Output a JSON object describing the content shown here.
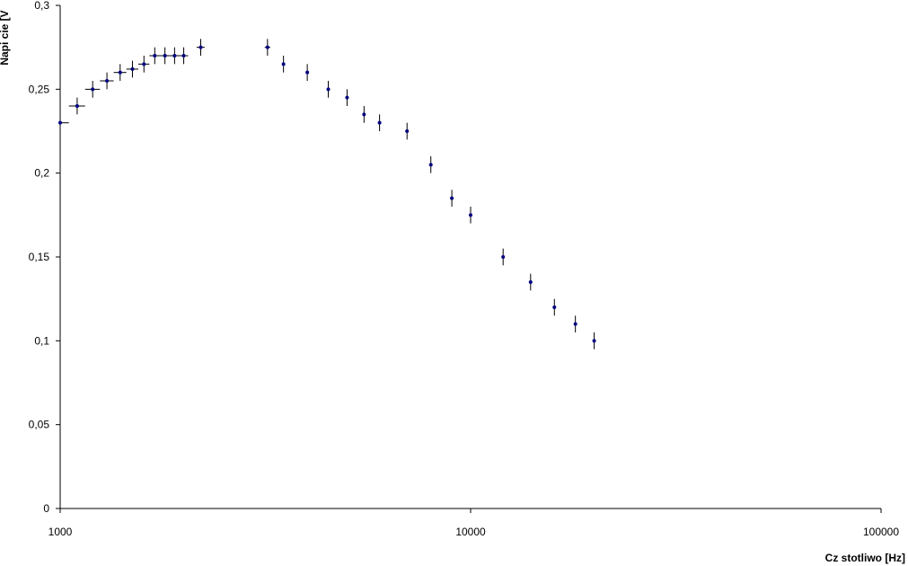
{
  "chart_data": {
    "type": "scatter",
    "title": "",
    "xlabel": "Cz  stotliwo    [Hz]",
    "ylabel": "Napi cie [V",
    "x_scale": "log",
    "xlim": [
      1000,
      100000
    ],
    "ylim": [
      0,
      0.3
    ],
    "x_ticks": [
      1000,
      10000,
      100000
    ],
    "x_tick_labels": [
      "1000",
      "10000",
      "100000"
    ],
    "y_ticks": [
      0,
      0.05,
      0.1,
      0.15,
      0.2,
      0.25,
      0.3
    ],
    "y_tick_labels": [
      "0",
      "0,05",
      "0,1",
      "0,15",
      "0,2",
      "0,25",
      "0,3"
    ],
    "grid": false,
    "legend": "none",
    "marker_color": "#000080",
    "error_bar_color": "#000000",
    "y_error": 0.005,
    "series": [
      {
        "points": [
          {
            "x": 1000,
            "y": 0.23,
            "xerr": 50
          },
          {
            "x": 1100,
            "y": 0.24,
            "xerr": 50
          },
          {
            "x": 1200,
            "y": 0.25,
            "xerr": 50
          },
          {
            "x": 1300,
            "y": 0.255,
            "xerr": 50
          },
          {
            "x": 1400,
            "y": 0.26,
            "xerr": 50
          },
          {
            "x": 1500,
            "y": 0.262,
            "xerr": 50
          },
          {
            "x": 1600,
            "y": 0.265,
            "xerr": 50
          },
          {
            "x": 1700,
            "y": 0.27,
            "xerr": 50
          },
          {
            "x": 1800,
            "y": 0.27,
            "xerr": 50
          },
          {
            "x": 1900,
            "y": 0.27,
            "xerr": 50
          },
          {
            "x": 2000,
            "y": 0.27,
            "xerr": 50
          },
          {
            "x": 2200,
            "y": 0.275,
            "xerr": 50
          },
          {
            "x": 3200,
            "y": 0.275,
            "xerr": 50
          },
          {
            "x": 3500,
            "y": 0.265,
            "xerr": 0
          },
          {
            "x": 4000,
            "y": 0.26,
            "xerr": 0
          },
          {
            "x": 4500,
            "y": 0.25,
            "xerr": 0
          },
          {
            "x": 5000,
            "y": 0.245,
            "xerr": 0
          },
          {
            "x": 5500,
            "y": 0.235,
            "xerr": 0
          },
          {
            "x": 6000,
            "y": 0.23,
            "xerr": 0
          },
          {
            "x": 7000,
            "y": 0.225,
            "xerr": 0
          },
          {
            "x": 8000,
            "y": 0.205,
            "xerr": 0
          },
          {
            "x": 9000,
            "y": 0.185,
            "xerr": 0
          },
          {
            "x": 10000,
            "y": 0.175,
            "xerr": 0
          },
          {
            "x": 12000,
            "y": 0.15,
            "xerr": 0
          },
          {
            "x": 14000,
            "y": 0.135,
            "xerr": 0
          },
          {
            "x": 16000,
            "y": 0.12,
            "xerr": 0
          },
          {
            "x": 18000,
            "y": 0.11,
            "xerr": 0
          },
          {
            "x": 20000,
            "y": 0.1,
            "xerr": 0
          }
        ]
      }
    ]
  }
}
